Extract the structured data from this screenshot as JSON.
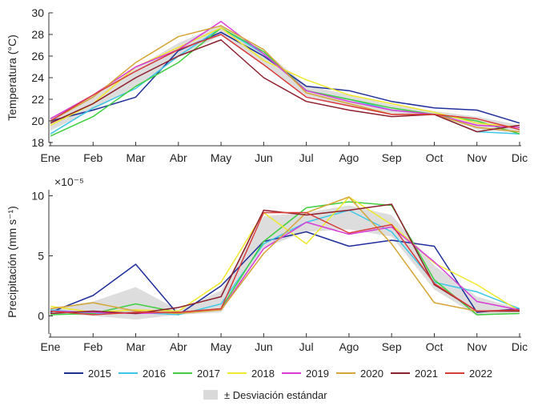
{
  "chart_data": [
    {
      "type": "line",
      "title": "",
      "xlabel": "",
      "ylabel": "Temperatura (°C)",
      "categories": [
        "Ene",
        "Feb",
        "Mar",
        "Abr",
        "May",
        "Jun",
        "Jul",
        "Ago",
        "Sep",
        "Oct",
        "Nov",
        "Dic"
      ],
      "ylim": [
        18,
        30
      ],
      "yticks": [
        18,
        20,
        22,
        24,
        26,
        28,
        30
      ],
      "series": [
        {
          "name": "2015",
          "color": "#1f2f9a",
          "values": [
            20.0,
            21.0,
            22.2,
            26.5,
            28.2,
            26.0,
            23.2,
            22.8,
            21.8,
            21.2,
            21.0,
            19.8
          ]
        },
        {
          "name": "2016",
          "color": "#3ec8e8",
          "values": [
            18.8,
            21.2,
            23.0,
            26.0,
            28.6,
            26.2,
            22.8,
            22.0,
            21.0,
            20.6,
            19.0,
            18.8
          ]
        },
        {
          "name": "2017",
          "color": "#3fcf3f",
          "values": [
            18.6,
            20.4,
            23.2,
            25.4,
            28.6,
            26.4,
            22.8,
            22.0,
            21.2,
            20.6,
            20.0,
            18.8
          ]
        },
        {
          "name": "2018",
          "color": "#f0e82a",
          "values": [
            19.6,
            21.6,
            25.0,
            26.8,
            28.6,
            25.6,
            23.8,
            22.4,
            21.6,
            20.8,
            19.8,
            19.4
          ]
        },
        {
          "name": "2019",
          "color": "#d93bd9",
          "values": [
            20.2,
            22.4,
            25.0,
            26.6,
            29.2,
            26.2,
            22.8,
            21.8,
            21.0,
            20.6,
            19.6,
            19.4
          ]
        },
        {
          "name": "2020",
          "color": "#d6a537",
          "values": [
            20.0,
            22.2,
            25.4,
            27.8,
            28.8,
            26.6,
            22.6,
            21.6,
            20.6,
            20.6,
            19.4,
            19.0
          ]
        },
        {
          "name": "2021",
          "color": "#8e1f2c",
          "values": [
            19.8,
            21.6,
            24.0,
            26.0,
            27.5,
            24.0,
            21.8,
            21.0,
            20.4,
            20.6,
            19.0,
            19.6
          ]
        },
        {
          "name": "2022",
          "color": "#d93a3a",
          "values": [
            20.0,
            22.4,
            24.6,
            26.6,
            28.0,
            25.2,
            22.2,
            21.4,
            20.6,
            20.6,
            20.2,
            19.2
          ]
        }
      ],
      "std_band": {
        "upper": [
          20.3,
          22.4,
          24.9,
          27.2,
          28.9,
          26.5,
          23.3,
          22.4,
          21.5,
          20.9,
          20.4,
          19.6
        ],
        "lower": [
          19.1,
          21.0,
          23.1,
          25.9,
          27.9,
          25.1,
          22.3,
          21.4,
          20.7,
          20.6,
          19.2,
          18.9
        ]
      }
    },
    {
      "type": "line",
      "title": "",
      "xlabel": "",
      "ylabel": "Precipitación (mm s⁻¹)",
      "scale_label": "×10⁻⁵",
      "categories": [
        "Ene",
        "Feb",
        "Mar",
        "Abr",
        "May",
        "Jun",
        "Jul",
        "Ago",
        "Sep",
        "Oct",
        "Nov",
        "Dic"
      ],
      "ylim": [
        -1.5,
        10.5
      ],
      "yticks": [
        0,
        5,
        10
      ],
      "series": [
        {
          "name": "2015",
          "color": "#1f2f9a",
          "values": [
            0.3,
            1.7,
            4.3,
            0.1,
            2.5,
            6.2,
            7.0,
            5.8,
            6.3,
            5.8,
            0.3,
            0.6
          ]
        },
        {
          "name": "2016",
          "color": "#3ec8e8",
          "values": [
            0.5,
            0.2,
            0.3,
            0.1,
            1.0,
            6.0,
            7.8,
            8.8,
            7.0,
            2.8,
            2.0,
            0.6
          ]
        },
        {
          "name": "2017",
          "color": "#3fcf3f",
          "values": [
            0.1,
            0.2,
            1.0,
            0.3,
            0.6,
            6.2,
            9.0,
            9.5,
            9.2,
            3.0,
            0.1,
            0.2
          ]
        },
        {
          "name": "2018",
          "color": "#f0e82a",
          "values": [
            0.8,
            0.3,
            0.5,
            0.4,
            2.8,
            8.6,
            6.0,
            9.9,
            7.6,
            4.4,
            2.6,
            0.4
          ]
        },
        {
          "name": "2019",
          "color": "#d93bd9",
          "values": [
            0.4,
            0.3,
            0.2,
            0.3,
            0.5,
            5.6,
            7.8,
            6.8,
            7.4,
            4.5,
            1.2,
            0.5
          ]
        },
        {
          "name": "2020",
          "color": "#d6a537",
          "values": [
            0.6,
            1.1,
            0.4,
            0.2,
            0.5,
            5.2,
            8.6,
            9.9,
            6.0,
            1.1,
            0.4,
            0.4
          ]
        },
        {
          "name": "2021",
          "color": "#8e1f2c",
          "values": [
            0.2,
            0.4,
            0.2,
            0.7,
            1.6,
            8.8,
            8.4,
            8.8,
            9.3,
            2.6,
            0.4,
            0.4
          ]
        },
        {
          "name": "2022",
          "color": "#d93a3a",
          "values": [
            0.4,
            0.1,
            0.3,
            0.3,
            0.6,
            8.6,
            8.6,
            6.9,
            7.6,
            2.7,
            0.4,
            0.5
          ]
        }
      ],
      "std_band": {
        "upper": [
          0.6,
          1.2,
          2.4,
          0.5,
          2.1,
          8.3,
          8.6,
          9.2,
          8.4,
          4.2,
          1.6,
          0.6
        ],
        "lower": [
          0.2,
          0.0,
          -0.3,
          0.1,
          0.3,
          5.7,
          7.0,
          7.2,
          6.6,
          2.2,
          0.0,
          0.3
        ]
      }
    }
  ],
  "legend": {
    "items": [
      "2015",
      "2016",
      "2017",
      "2018",
      "2019",
      "2020",
      "2021",
      "2022"
    ],
    "band_label": "± Desviación estándar"
  }
}
